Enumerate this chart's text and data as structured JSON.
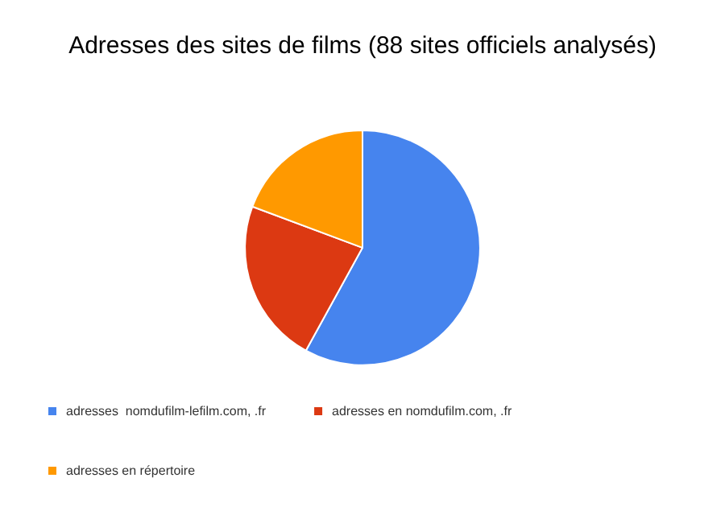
{
  "chart_data": {
    "type": "pie",
    "title": "Adresses des sites de films (88 sites officiels analysés)",
    "categories": [
      "adresses  nomdufilm-lefilm.com, .fr",
      "adresses en nomdufilm.com, .fr",
      "adresses en répertoire"
    ],
    "values": [
      58,
      22.7,
      19.3
    ],
    "colors": [
      "#4684ee",
      "#dc3912",
      "#ff9900"
    ],
    "legend": "bottom"
  }
}
